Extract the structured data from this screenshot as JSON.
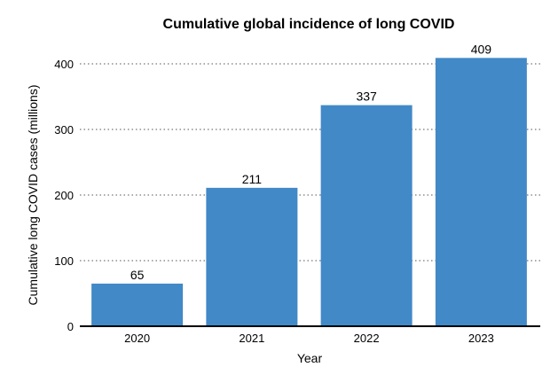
{
  "chart_data": {
    "type": "bar",
    "title": "Cumulative global incidence of long COVID",
    "xlabel": "Year",
    "ylabel": "Cumulative long COVID cases (millions)",
    "categories": [
      "2020",
      "2021",
      "2022",
      "2023"
    ],
    "values": [
      65,
      211,
      337,
      409
    ],
    "value_labels": [
      "65",
      "211",
      "337",
      "409"
    ],
    "ylim": [
      0,
      420
    ],
    "yticks": [
      0,
      100,
      200,
      300,
      400
    ],
    "ytick_labels": [
      "0",
      "100",
      "200",
      "300",
      "400"
    ],
    "grid": "horizontal dotted",
    "bar_color": "#4189c7",
    "legend": "none"
  }
}
